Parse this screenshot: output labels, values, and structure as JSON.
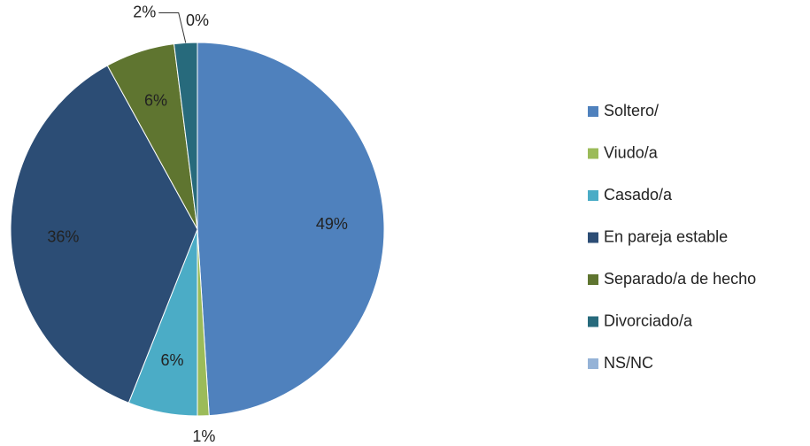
{
  "chart_data": {
    "type": "pie",
    "categories": [
      "Soltero/",
      "Viudo/a",
      "Casado/a",
      "En pareja estable",
      "Separado/a de hecho",
      "Divorciado/a",
      "NS/NC"
    ],
    "values": [
      49,
      1,
      6,
      36,
      6,
      2,
      0
    ],
    "colors": [
      "#4f81bd",
      "#9bbb59",
      "#4bacc6",
      "#2c4d75",
      "#5f7530",
      "#276a7c",
      "#95b3d7"
    ],
    "legend": "right"
  }
}
